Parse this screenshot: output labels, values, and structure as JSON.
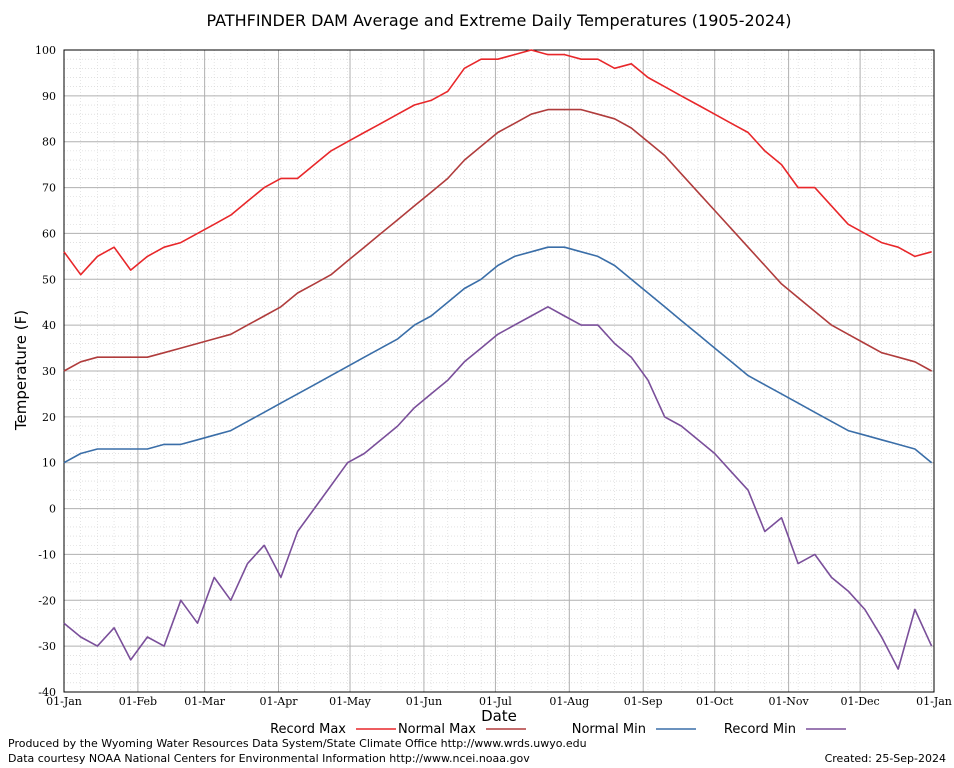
{
  "chart_data": {
    "type": "line",
    "title": "PATHFINDER DAM Average and Extreme Daily Temperatures (1905-2024)",
    "xlabel": "Date",
    "ylabel": "Temperature (F)",
    "ylim": [
      -40,
      100
    ],
    "y_ticks": [
      "100",
      "90",
      "80",
      "70",
      "60",
      "50",
      "40",
      "30",
      "20",
      "10",
      "0",
      "-10",
      "-20",
      "-30",
      "-40"
    ],
    "x_ticks": [
      "01-Jan",
      "01-Feb",
      "01-Mar",
      "01-Apr",
      "01-May",
      "01-Jun",
      "01-Jul",
      "01-Aug",
      "01-Sep",
      "01-Oct",
      "01-Nov",
      "01-Dec",
      "01-Jan"
    ],
    "x_tick_days": [
      1,
      32,
      60,
      91,
      121,
      152,
      182,
      213,
      244,
      274,
      305,
      335,
      366
    ],
    "x_range_days": [
      1,
      366
    ],
    "grid": true,
    "legend_position": "bottom",
    "sample_days": [
      1,
      8,
      15,
      22,
      29,
      36,
      43,
      50,
      57,
      64,
      71,
      78,
      85,
      92,
      99,
      106,
      113,
      120,
      127,
      134,
      141,
      148,
      155,
      162,
      169,
      176,
      183,
      190,
      197,
      204,
      211,
      218,
      225,
      232,
      239,
      246,
      253,
      260,
      267,
      274,
      281,
      288,
      295,
      302,
      309,
      316,
      323,
      330,
      337,
      344,
      351,
      358,
      365
    ],
    "series": [
      {
        "name": "Record Max",
        "color": "#e8272a",
        "values": [
          56,
          51,
          55,
          57,
          52,
          55,
          57,
          58,
          60,
          62,
          64,
          67,
          70,
          72,
          72,
          75,
          78,
          80,
          82,
          84,
          86,
          88,
          89,
          91,
          96,
          98,
          98,
          99,
          100,
          99,
          99,
          98,
          98,
          96,
          97,
          94,
          92,
          90,
          88,
          86,
          84,
          82,
          78,
          75,
          70,
          70,
          66,
          62,
          60,
          58,
          57,
          55,
          56
        ]
      },
      {
        "name": "Normal Max",
        "color": "#b03c3c",
        "values": [
          30,
          32,
          33,
          33,
          33,
          33,
          34,
          35,
          36,
          37,
          38,
          40,
          42,
          44,
          47,
          49,
          51,
          54,
          57,
          60,
          63,
          66,
          69,
          72,
          76,
          79,
          82,
          84,
          86,
          87,
          87,
          87,
          86,
          85,
          83,
          80,
          77,
          73,
          69,
          65,
          61,
          57,
          53,
          49,
          46,
          43,
          40,
          38,
          36,
          34,
          33,
          32,
          30
        ]
      },
      {
        "name": "Normal Min",
        "color": "#3a6ea8",
        "values": [
          10,
          12,
          13,
          13,
          13,
          13,
          14,
          14,
          15,
          16,
          17,
          19,
          21,
          23,
          25,
          27,
          29,
          31,
          33,
          35,
          37,
          40,
          42,
          45,
          48,
          50,
          53,
          55,
          56,
          57,
          57,
          56,
          55,
          53,
          50,
          47,
          44,
          41,
          38,
          35,
          32,
          29,
          27,
          25,
          23,
          21,
          19,
          17,
          16,
          15,
          14,
          13,
          10
        ]
      },
      {
        "name": "Record Min",
        "color": "#7a4f9a",
        "values": [
          -25,
          -28,
          -30,
          -26,
          -33,
          -28,
          -30,
          -20,
          -25,
          -15,
          -20,
          -12,
          -8,
          -15,
          -5,
          0,
          5,
          10,
          12,
          15,
          18,
          22,
          25,
          28,
          32,
          35,
          38,
          40,
          42,
          44,
          42,
          40,
          40,
          36,
          33,
          28,
          20,
          18,
          15,
          12,
          8,
          4,
          -5,
          -2,
          -12,
          -10,
          -15,
          -18,
          -22,
          -28,
          -35,
          -22,
          -30
        ]
      }
    ]
  },
  "credits": {
    "line1": "Produced by the Wyoming Water Resources Data System/State Climate Office http://www.wrds.uwyo.edu",
    "line2": "Data courtesy NOAA National Centers for Environmental Information http://www.ncei.noaa.gov",
    "created": "Created:  25-Sep-2024"
  }
}
